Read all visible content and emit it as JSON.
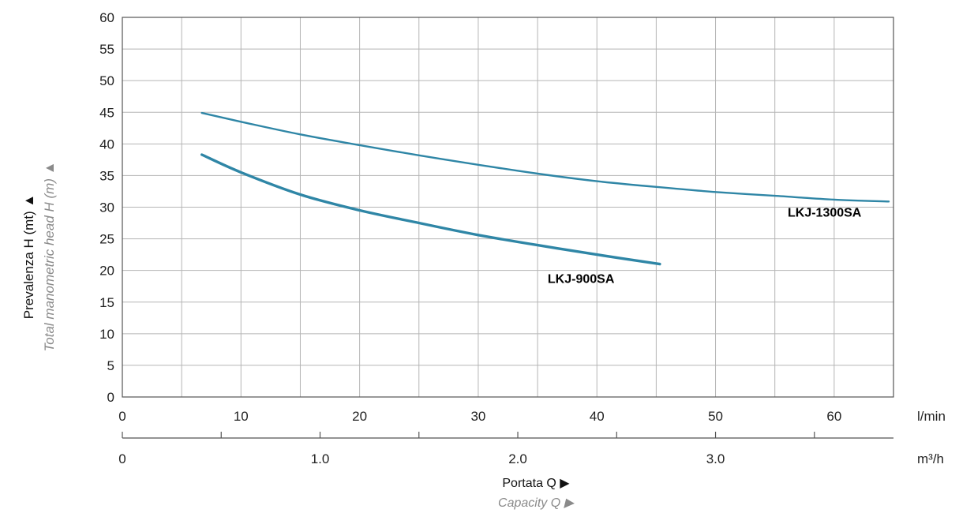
{
  "chart_data": {
    "type": "line",
    "title": "",
    "ylabel": "Prevalenza H (mt) ▲",
    "ylabel_secondary": "Total manometric head H (m) ▲",
    "xlabel": "Portata Q ▶",
    "xlabel_secondary": "Capacity Q ▶",
    "x_unit": "l/min",
    "x2_unit": "m³/h",
    "xlim": [
      0,
      65
    ],
    "ylim": [
      0,
      60
    ],
    "x2lim": [
      0,
      3.9
    ],
    "x_ticks": [
      "0",
      "10",
      "20",
      "30",
      "40",
      "50",
      "60"
    ],
    "x_tick_values": [
      0,
      10,
      20,
      30,
      40,
      50,
      60
    ],
    "x2_ticks": [
      "0",
      "1.0",
      "2.0",
      "3.0"
    ],
    "x2_tick_values": [
      0,
      1.0,
      2.0,
      3.0
    ],
    "y_ticks": [
      "0",
      "5",
      "10",
      "15",
      "20",
      "25",
      "30",
      "35",
      "40",
      "45",
      "50",
      "55",
      "60"
    ],
    "y_tick_values": [
      0,
      5,
      10,
      15,
      20,
      25,
      30,
      35,
      40,
      45,
      50,
      55,
      60
    ],
    "grid": true,
    "series": [
      {
        "name": "LKJ-1300SA",
        "x": [
          6.7,
          10,
          15,
          20,
          25,
          30,
          35,
          40,
          45,
          50,
          55,
          60,
          64.6
        ],
        "y": [
          44.9,
          43.5,
          41.5,
          39.8,
          38.2,
          36.7,
          35.3,
          34.1,
          33.2,
          32.4,
          31.8,
          31.2,
          30.9
        ]
      },
      {
        "name": "LKJ-900SA",
        "x": [
          6.7,
          10,
          15,
          20,
          25,
          30,
          35,
          40,
          45.3
        ],
        "y": [
          38.3,
          35.5,
          32.0,
          29.5,
          27.5,
          25.6,
          24.0,
          22.5,
          21.0
        ]
      }
    ],
    "series_colors": [
      "#2f86a6",
      "#2f86a6"
    ]
  }
}
